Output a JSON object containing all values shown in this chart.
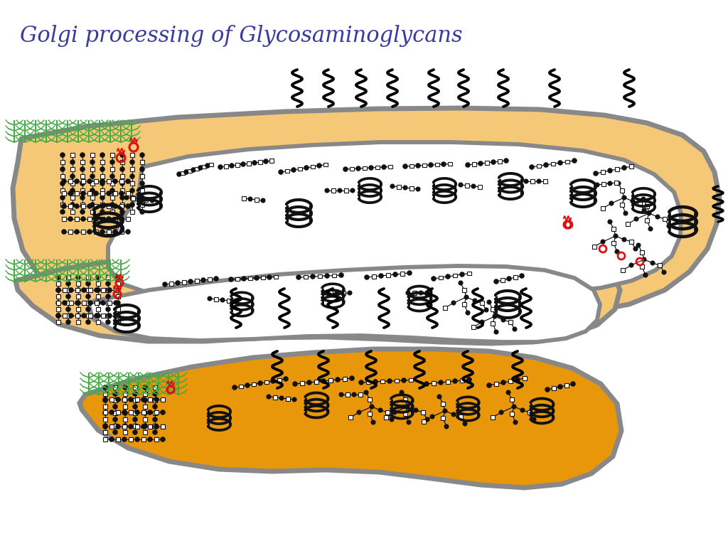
{
  "title": "Golgi processing of Glycosaminoglycans",
  "title_color": "#3B3B9E",
  "title_fontsize": 22,
  "bg_color": "#FFFFFF",
  "c1_fill": "#F5C878",
  "c1_stroke": "#888888",
  "c2_fill": "#F5C878",
  "c2_stroke": "#888888",
  "c3_fill": "#E8960A",
  "c3_stroke": "#888888",
  "stroke_width": 5,
  "green_color": "#44AA44",
  "red_color": "#DD1111",
  "black_color": "#111111",
  "white_fill": "#FFFFFF"
}
